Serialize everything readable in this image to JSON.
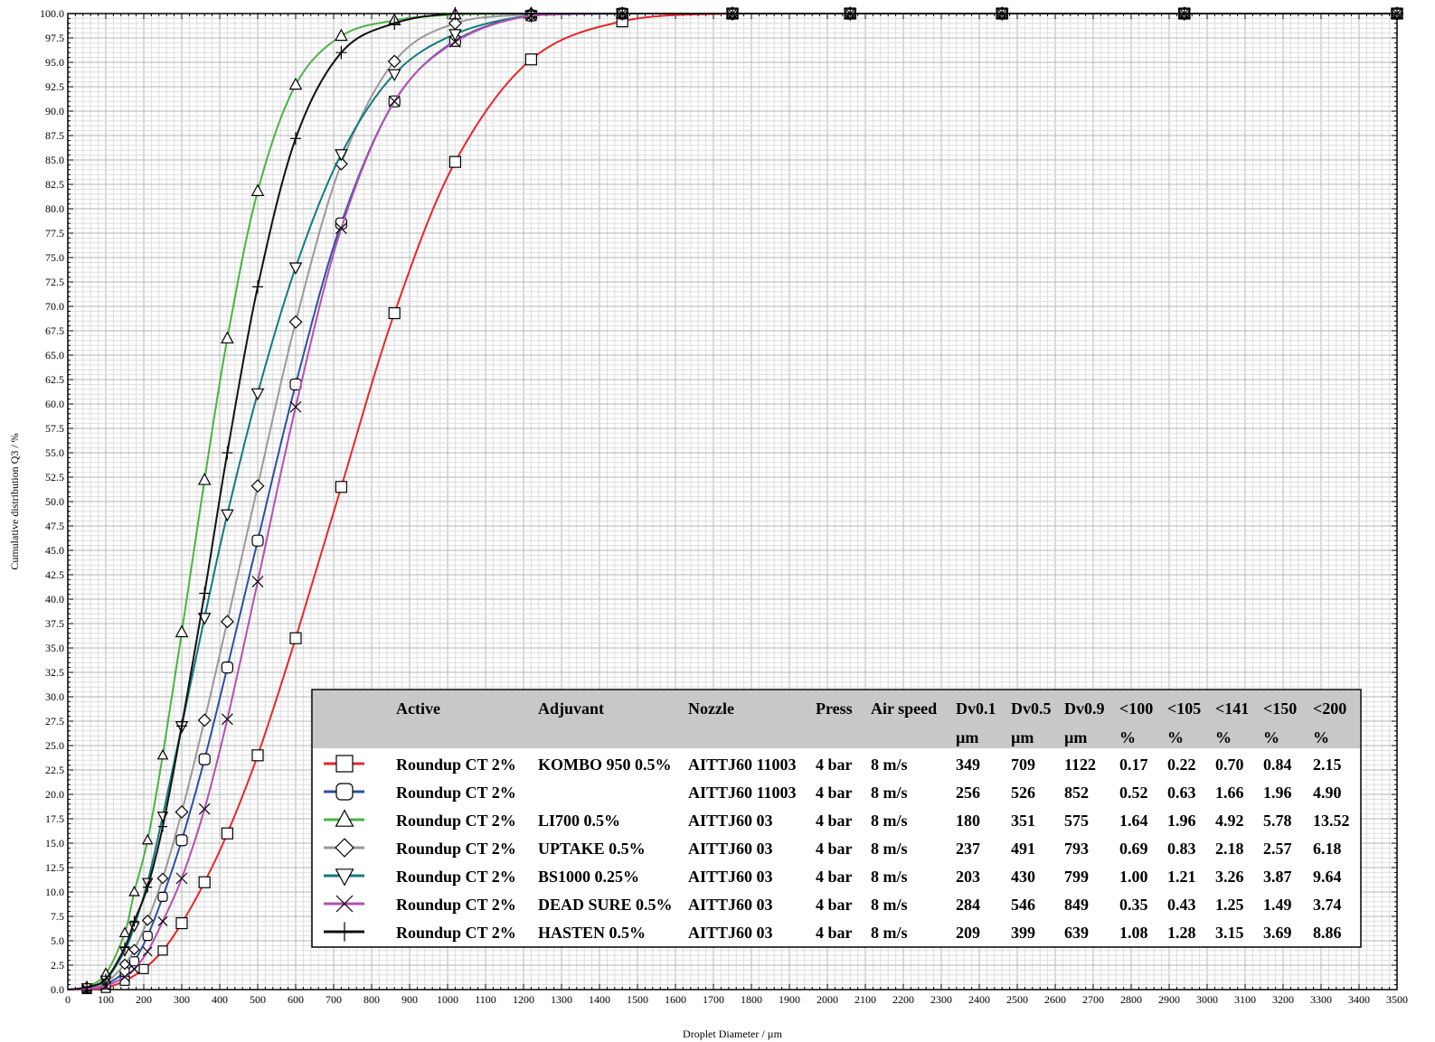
{
  "chart_data": {
    "type": "line",
    "title": "",
    "xlabel": "Droplet Diameter / µm",
    "ylabel": "Cumulative distribution Q3 / %",
    "xlim": [
      0,
      3500
    ],
    "ylim": [
      0,
      100
    ],
    "x_ticks": [
      0,
      100,
      200,
      300,
      400,
      500,
      600,
      700,
      800,
      900,
      1000,
      1100,
      1200,
      1300,
      1400,
      1500,
      1600,
      1700,
      1800,
      1900,
      2000,
      2100,
      2200,
      2300,
      2400,
      2500,
      2600,
      2700,
      2800,
      2900,
      3000,
      3100,
      3200,
      3300,
      3400,
      3500
    ],
    "y_ticks": [
      "0.0",
      "2.5",
      "5.0",
      "7.5",
      "10.0",
      "12.5",
      "15.0",
      "17.5",
      "20.0",
      "22.5",
      "25.0",
      "27.5",
      "30.0",
      "32.5",
      "35.0",
      "37.5",
      "40.0",
      "42.5",
      "45.0",
      "47.5",
      "50.0",
      "52.5",
      "55.0",
      "57.5",
      "60.0",
      "62.5",
      "65.0",
      "67.5",
      "70.0",
      "72.5",
      "75.0",
      "77.5",
      "80.0",
      "82.5",
      "85.0",
      "87.5",
      "90.0",
      "92.5",
      "95.0",
      "97.5",
      "100.0"
    ],
    "grid": true,
    "legend_placement": "bottom-right",
    "legend_table": {
      "headers": [
        "Active",
        "Adjuvant",
        "Nozzle",
        "Press",
        "Air speed",
        "Dv0.1",
        "Dv0.5",
        "Dv0.9",
        "<100",
        "<105",
        "<141",
        "<150",
        "<200"
      ],
      "units": [
        "",
        "",
        "",
        "",
        "",
        "µm",
        "µm",
        "µm",
        "%",
        "%",
        "%",
        "%",
        "%"
      ]
    },
    "series": [
      {
        "color": "#e8262b",
        "marker": "square",
        "row": [
          "Roundup CT 2%",
          "KOMBO 950 0.5%",
          "AITTJ60 11003",
          "4 bar",
          "8 m/s",
          "349",
          "709",
          "1122",
          "0.17",
          "0.22",
          "0.70",
          "0.84",
          "2.15"
        ],
        "points": [
          [
            0,
            0
          ],
          [
            50,
            0.05
          ],
          [
            100,
            0.17
          ],
          [
            150,
            0.9
          ],
          [
            200,
            2.1
          ],
          [
            250,
            4
          ],
          [
            300,
            6.8
          ],
          [
            360,
            11
          ],
          [
            420,
            16
          ],
          [
            500,
            24
          ],
          [
            600,
            36
          ],
          [
            720,
            51.5
          ],
          [
            860,
            69.3
          ],
          [
            1020,
            84.8
          ],
          [
            1220,
            95.3
          ],
          [
            1460,
            99.2
          ],
          [
            1750,
            100
          ],
          [
            2060,
            100
          ],
          [
            2460,
            100
          ],
          [
            2940,
            100
          ],
          [
            3500,
            100
          ]
        ]
      },
      {
        "color": "#2b4fa2",
        "marker": "round",
        "row": [
          "Roundup CT 2%",
          "",
          "AITTJ60 11003",
          "4 bar",
          "8 m/s",
          "256",
          "526",
          "852",
          "0.52",
          "0.63",
          "1.66",
          "1.96",
          "4.90"
        ],
        "points": [
          [
            0,
            0
          ],
          [
            50,
            0.12
          ],
          [
            100,
            0.52
          ],
          [
            150,
            1.8
          ],
          [
            175,
            2.9
          ],
          [
            210,
            5.5
          ],
          [
            250,
            9.5
          ],
          [
            300,
            15.3
          ],
          [
            360,
            23.6
          ],
          [
            420,
            33
          ],
          [
            500,
            46
          ],
          [
            600,
            62
          ],
          [
            720,
            78.5
          ],
          [
            860,
            91
          ],
          [
            1020,
            97.2
          ],
          [
            1220,
            99.8
          ],
          [
            1460,
            100
          ],
          [
            1750,
            100
          ],
          [
            2060,
            100
          ],
          [
            2460,
            100
          ],
          [
            2940,
            100
          ],
          [
            3500,
            100
          ]
        ]
      },
      {
        "color": "#4ab342",
        "marker": "triangle-up",
        "row": [
          "Roundup CT 2%",
          "LI700 0.5%",
          "AITTJ60 03",
          "4 bar",
          "8 m/s",
          "180",
          "351",
          "575",
          "1.64",
          "1.96",
          "4.92",
          "5.78",
          "13.52"
        ],
        "points": [
          [
            0,
            0
          ],
          [
            50,
            0.3
          ],
          [
            100,
            1.64
          ],
          [
            150,
            5.8
          ],
          [
            175,
            10
          ],
          [
            210,
            15.3
          ],
          [
            250,
            24
          ],
          [
            300,
            36.6
          ],
          [
            360,
            52.2
          ],
          [
            420,
            66.7
          ],
          [
            500,
            81.8
          ],
          [
            600,
            92.7
          ],
          [
            720,
            97.7
          ],
          [
            860,
            99.3
          ],
          [
            1020,
            99.9
          ],
          [
            1220,
            100
          ],
          [
            1460,
            100
          ],
          [
            1750,
            100
          ],
          [
            2060,
            100
          ],
          [
            2460,
            100
          ],
          [
            2940,
            100
          ],
          [
            3500,
            100
          ]
        ]
      },
      {
        "color": "#999999",
        "marker": "diamond",
        "row": [
          "Roundup CT 2%",
          "UPTAKE 0.5%",
          "AITTJ60 03",
          "4 bar",
          "8 m/s",
          "237",
          "491",
          "793",
          "0.69",
          "0.83",
          "2.18",
          "2.57",
          "6.18"
        ],
        "points": [
          [
            0,
            0
          ],
          [
            50,
            0.15
          ],
          [
            100,
            0.69
          ],
          [
            150,
            2.6
          ],
          [
            175,
            4.1
          ],
          [
            210,
            7.1
          ],
          [
            250,
            11.4
          ],
          [
            300,
            18.2
          ],
          [
            360,
            27.6
          ],
          [
            420,
            37.7
          ],
          [
            500,
            51.6
          ],
          [
            600,
            68.4
          ],
          [
            720,
            84.6
          ],
          [
            860,
            95.1
          ],
          [
            1020,
            99
          ],
          [
            1220,
            99.9
          ],
          [
            1460,
            100
          ],
          [
            1750,
            100
          ],
          [
            2060,
            100
          ],
          [
            2460,
            100
          ],
          [
            2940,
            100
          ],
          [
            3500,
            100
          ]
        ]
      },
      {
        "color": "#157a7c",
        "marker": "triangle-down",
        "row": [
          "Roundup CT 2%",
          "BS1000 0.25%",
          "AITTJ60 03",
          "4 bar",
          "8 m/s",
          "203",
          "430",
          "799",
          "1.00",
          "1.21",
          "3.26",
          "3.87",
          "9.64"
        ],
        "points": [
          [
            0,
            0
          ],
          [
            50,
            0.22
          ],
          [
            100,
            1.0
          ],
          [
            150,
            4
          ],
          [
            175,
            6.5
          ],
          [
            210,
            11
          ],
          [
            250,
            17.8
          ],
          [
            300,
            27
          ],
          [
            360,
            38.1
          ],
          [
            420,
            48.7
          ],
          [
            500,
            61.1
          ],
          [
            600,
            74
          ],
          [
            720,
            85.6
          ],
          [
            860,
            93.8
          ],
          [
            1020,
            97.9
          ],
          [
            1220,
            99.8
          ],
          [
            1460,
            100
          ],
          [
            1750,
            100
          ],
          [
            2060,
            100
          ],
          [
            2460,
            100
          ],
          [
            2940,
            100
          ],
          [
            3500,
            100
          ]
        ]
      },
      {
        "color": "#b44fb2",
        "marker": "x",
        "row": [
          "Roundup CT 2%",
          "DEAD SURE 0.5%",
          "AITTJ60 03",
          "4 bar",
          "8 m/s",
          "284",
          "546",
          "849",
          "0.35",
          "0.43",
          "1.25",
          "1.49",
          "3.74"
        ],
        "points": [
          [
            0,
            0
          ],
          [
            50,
            0.08
          ],
          [
            100,
            0.35
          ],
          [
            150,
            1.3
          ],
          [
            175,
            2.1
          ],
          [
            210,
            3.9
          ],
          [
            250,
            7
          ],
          [
            300,
            11.4
          ],
          [
            360,
            18.5
          ],
          [
            420,
            27.7
          ],
          [
            500,
            41.8
          ],
          [
            600,
            59.7
          ],
          [
            720,
            78
          ],
          [
            860,
            91
          ],
          [
            1020,
            97.1
          ],
          [
            1220,
            99.8
          ],
          [
            1460,
            100
          ],
          [
            1750,
            100
          ],
          [
            2060,
            100
          ],
          [
            2460,
            100
          ],
          [
            2940,
            100
          ],
          [
            3500,
            100
          ]
        ]
      },
      {
        "color": "#111111",
        "marker": "plus",
        "row": [
          "Roundup CT 2%",
          "HASTEN 0.5%",
          "AITTJ60 03",
          "4 bar",
          "8 m/s",
          "209",
          "399",
          "639",
          "1.08",
          "1.28",
          "3.15",
          "3.69",
          "8.86"
        ],
        "points": [
          [
            0,
            0
          ],
          [
            50,
            0.25
          ],
          [
            100,
            1.08
          ],
          [
            150,
            4.3
          ],
          [
            175,
            7
          ],
          [
            210,
            10.5
          ],
          [
            250,
            16.7
          ],
          [
            300,
            27
          ],
          [
            360,
            40.6
          ],
          [
            420,
            55
          ],
          [
            500,
            72
          ],
          [
            600,
            87.2
          ],
          [
            720,
            96
          ],
          [
            860,
            99
          ],
          [
            1020,
            100
          ],
          [
            1220,
            100
          ],
          [
            1460,
            100
          ],
          [
            1750,
            100
          ],
          [
            2060,
            100
          ],
          [
            2460,
            100
          ],
          [
            2940,
            100
          ],
          [
            3500,
            100
          ]
        ]
      }
    ]
  }
}
